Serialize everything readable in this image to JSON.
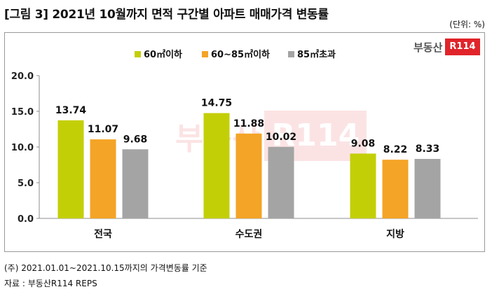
{
  "header": {
    "title": "[그림 3] 2021년 10월까지 면적 구간별 아파트 매매가격 변동률",
    "unit": "(단위: %)"
  },
  "logo": {
    "text": "부동산",
    "badge": "R114"
  },
  "footer": {
    "note": "(주) 2021.01.01~2021.10.15까지의 가격변동률 기준",
    "source": "자료 : 부동산R114 REPS"
  },
  "colors": {
    "green": "#c3cf06",
    "orange": "#f4a426",
    "gray": "#a4a4a4",
    "brand": "#e0242a"
  },
  "chart_data": {
    "type": "bar",
    "categories": [
      "전국",
      "수도권",
      "지방"
    ],
    "series": [
      {
        "name": "60㎡이하",
        "values": [
          13.74,
          14.75,
          9.08
        ],
        "labels": [
          "13.74",
          "14.75",
          "9.08"
        ],
        "color": "#c3cf06"
      },
      {
        "name": "60~85㎡이하",
        "values": [
          11.07,
          11.88,
          8.22
        ],
        "labels": [
          "11.07",
          "11.88",
          "8.22"
        ],
        "color": "#f4a426"
      },
      {
        "name": "85㎡초과",
        "values": [
          9.68,
          10.02,
          8.33
        ],
        "labels": [
          "9.68",
          "10.02",
          "8.33"
        ],
        "color": "#a4a4a4"
      }
    ],
    "ylim": [
      0,
      20
    ],
    "yticks": [
      "0.0",
      "5.0",
      "10.0",
      "15.0",
      "20.0"
    ],
    "grid": false,
    "legend": "top-center"
  }
}
